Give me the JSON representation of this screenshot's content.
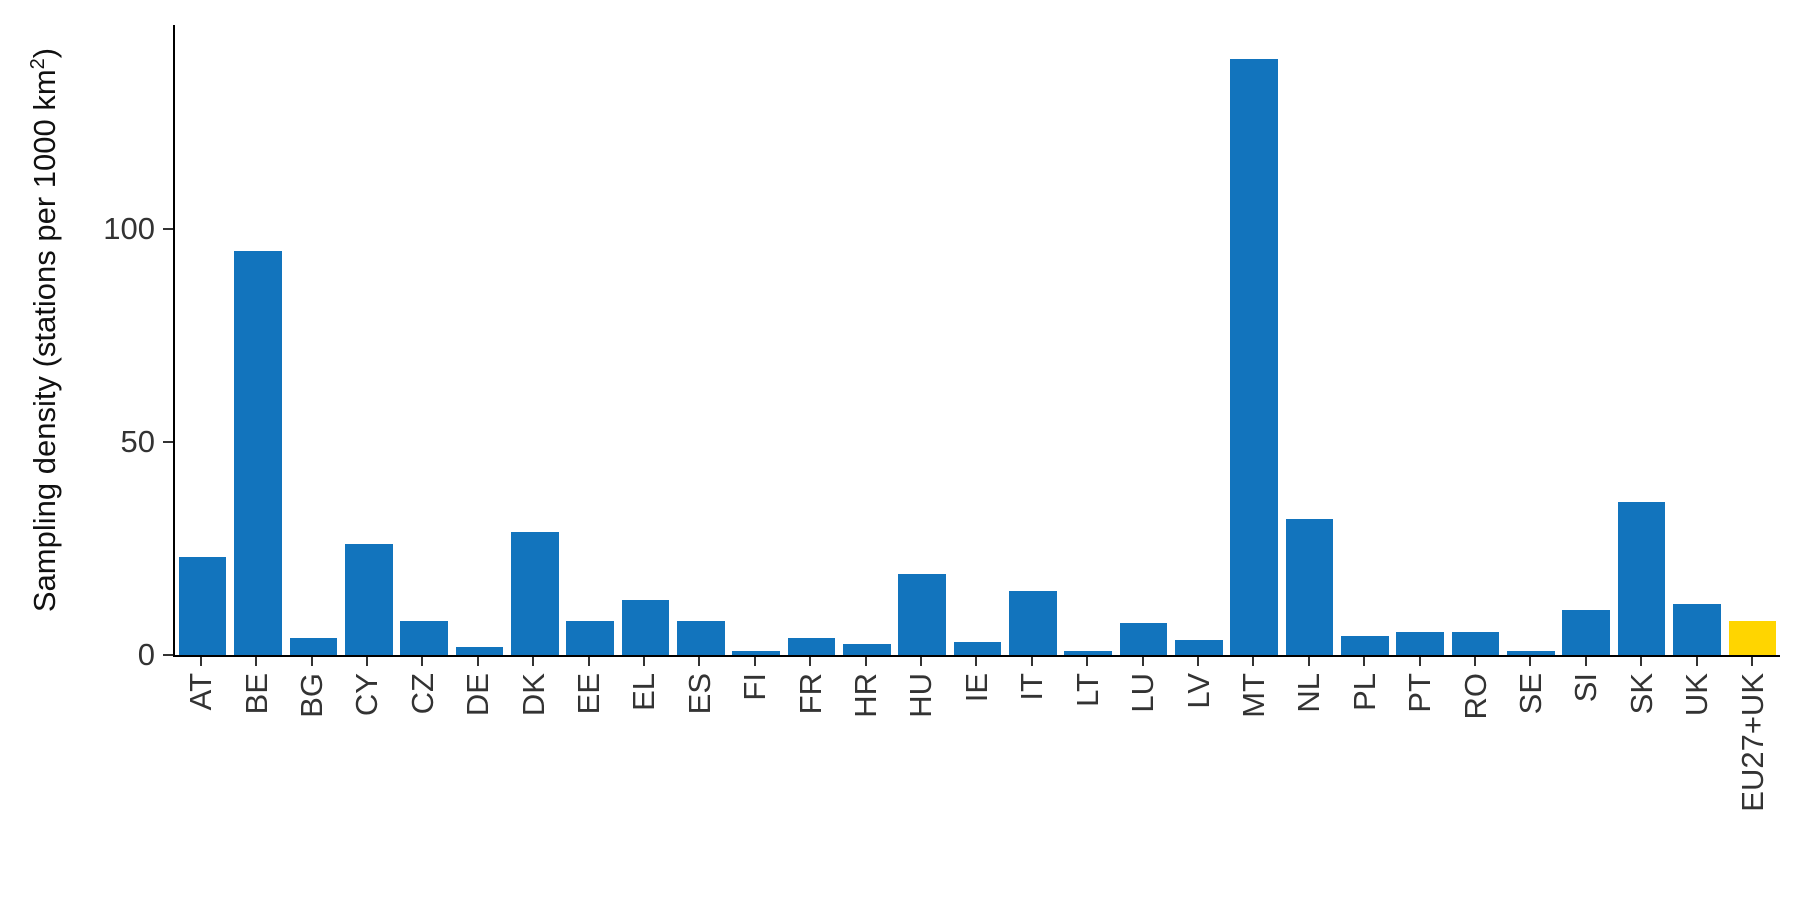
{
  "chart_data": {
    "type": "bar",
    "title": "",
    "ylabel_prefix": "Sampling density (stations per 1000 km",
    "ylabel_sup": "2",
    "ylabel_suffix": ")",
    "categories": [
      "AT",
      "BE",
      "BG",
      "CY",
      "CZ",
      "DE",
      "DK",
      "EE",
      "EL",
      "ES",
      "FI",
      "FR",
      "HR",
      "HU",
      "IE",
      "IT",
      "LT",
      "LU",
      "LV",
      "MT",
      "NL",
      "PL",
      "PT",
      "RO",
      "SE",
      "SI",
      "SK",
      "UK",
      "EU27+UK"
    ],
    "values": [
      23,
      95,
      4,
      26,
      8,
      2,
      29,
      8,
      13,
      8,
      1,
      4,
      2.5,
      19,
      3,
      15,
      1,
      7.5,
      3.5,
      140,
      32,
      4.5,
      5.5,
      5.5,
      1,
      10.5,
      36,
      12,
      8
    ],
    "highlight_category": "EU27+UK",
    "colors": {
      "bar_default": "#1274bd",
      "bar_highlight": "#ffd500",
      "axis_line": "#000000",
      "axis_text": "#333333"
    },
    "ylim": [
      0,
      148
    ],
    "yticks": [
      0,
      50,
      100
    ],
    "grid": false,
    "legend": false
  }
}
